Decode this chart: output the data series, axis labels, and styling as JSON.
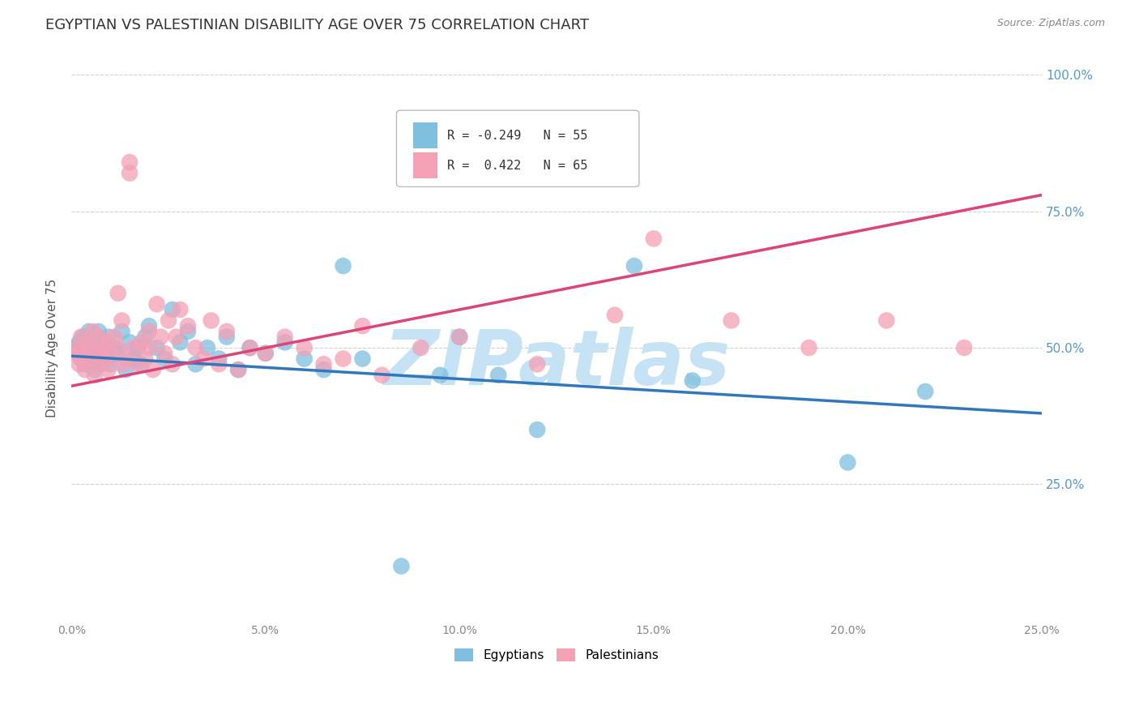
{
  "title": "EGYPTIAN VS PALESTINIAN DISABILITY AGE OVER 75 CORRELATION CHART",
  "source": "Source: ZipAtlas.com",
  "ylabel": "Disability Age Over 75",
  "x_tick_labels": [
    "0.0%",
    "5.0%",
    "10.0%",
    "15.0%",
    "20.0%",
    "25.0%"
  ],
  "x_tick_values": [
    0.0,
    5.0,
    10.0,
    15.0,
    20.0,
    25.0
  ],
  "y_tick_labels": [
    "25.0%",
    "50.0%",
    "75.0%",
    "100.0%"
  ],
  "y_tick_values": [
    25.0,
    50.0,
    75.0,
    100.0
  ],
  "xlim": [
    0.0,
    25.0
  ],
  "ylim": [
    0.0,
    100.0
  ],
  "legend_r_blue": "R = -0.249",
  "legend_n_blue": "N = 55",
  "legend_r_pink": "R =  0.422",
  "legend_n_pink": "N = 65",
  "legend_label_blue": "Egyptians",
  "legend_label_pink": "Palestinians",
  "blue_color": "#7fbfdf",
  "pink_color": "#f4a0b5",
  "blue_line_color": "#3377bb",
  "pink_line_color": "#dd4477",
  "watermark_color": "#c5e3f5",
  "title_fontsize": 13,
  "axis_label_fontsize": 11,
  "tick_fontsize": 10,
  "egyptians_x": [
    0.1,
    0.15,
    0.2,
    0.25,
    0.3,
    0.35,
    0.4,
    0.45,
    0.5,
    0.55,
    0.6,
    0.65,
    0.7,
    0.75,
    0.8,
    0.85,
    0.9,
    0.95,
    1.0,
    1.1,
    1.2,
    1.3,
    1.4,
    1.5,
    1.6,
    1.7,
    1.8,
    1.9,
    2.0,
    2.2,
    2.4,
    2.6,
    2.8,
    3.0,
    3.2,
    3.5,
    3.8,
    4.0,
    4.3,
    4.6,
    5.0,
    5.5,
    6.0,
    6.5,
    7.0,
    7.5,
    8.5,
    9.5,
    10.0,
    11.0,
    12.0,
    14.5,
    16.0,
    20.0,
    22.0
  ],
  "egyptians_y": [
    50,
    49,
    51,
    48,
    52,
    47,
    50,
    53,
    48,
    51,
    46,
    49,
    53,
    47,
    51,
    50,
    48,
    52,
    47,
    50,
    49,
    53,
    46,
    51,
    48,
    50,
    47,
    52,
    54,
    50,
    48,
    57,
    51,
    53,
    47,
    50,
    48,
    52,
    46,
    50,
    49,
    51,
    48,
    46,
    65,
    48,
    10,
    45,
    52,
    45,
    35,
    65,
    44,
    29,
    42
  ],
  "palestinians_x": [
    0.1,
    0.15,
    0.2,
    0.25,
    0.3,
    0.35,
    0.4,
    0.45,
    0.5,
    0.55,
    0.6,
    0.65,
    0.7,
    0.75,
    0.8,
    0.85,
    0.9,
    0.95,
    1.0,
    1.1,
    1.2,
    1.3,
    1.4,
    1.5,
    1.5,
    1.6,
    1.7,
    1.8,
    1.9,
    2.0,
    2.1,
    2.2,
    2.3,
    2.4,
    2.5,
    2.6,
    2.7,
    2.8,
    3.0,
    3.2,
    3.4,
    3.6,
    3.8,
    4.0,
    4.3,
    4.6,
    5.0,
    5.5,
    6.0,
    6.5,
    7.0,
    7.5,
    8.0,
    9.0,
    10.0,
    12.0,
    14.0,
    15.0,
    17.0,
    19.0,
    21.0,
    23.0,
    1.2,
    1.3,
    2.0
  ],
  "palestinians_y": [
    49,
    50,
    47,
    52,
    48,
    46,
    51,
    50,
    48,
    53,
    45,
    49,
    52,
    47,
    50,
    48,
    51,
    46,
    49,
    52,
    50,
    47,
    48,
    84,
    82,
    50,
    47,
    51,
    48,
    53,
    46,
    58,
    52,
    49,
    55,
    47,
    52,
    57,
    54,
    50,
    48,
    55,
    47,
    53,
    46,
    50,
    49,
    52,
    50,
    47,
    48,
    54,
    45,
    50,
    52,
    47,
    56,
    70,
    55,
    50,
    55,
    50,
    60,
    55,
    50
  ],
  "blue_regression_x0": 0.0,
  "blue_regression_y0": 48.5,
  "blue_regression_x1": 25.0,
  "blue_regression_y1": 38.0,
  "pink_regression_x0": 0.0,
  "pink_regression_y0": 43.0,
  "pink_regression_x1": 25.0,
  "pink_regression_y1": 78.0,
  "pink_dashed_x0": 17.0,
  "pink_dashed_x1": 25.0
}
